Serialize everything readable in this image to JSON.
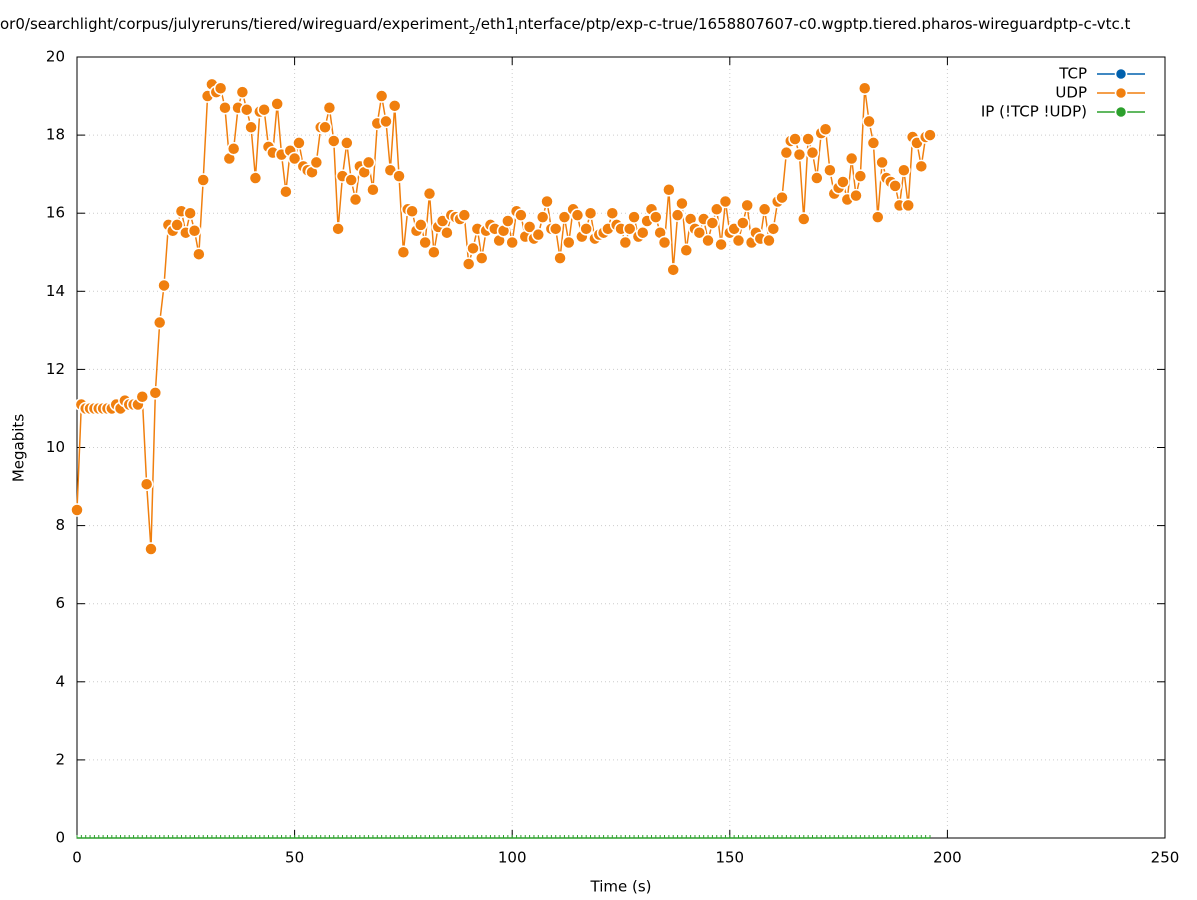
{
  "chart_data": {
    "type": "line",
    "title_segments": [
      {
        "text": "or0/searchlight/corpus/julyreruns/tiered/wireguard/experiment",
        "sub": false
      },
      {
        "text": "2",
        "sub": true
      },
      {
        "text": "/eth1",
        "sub": false
      },
      {
        "text": "i",
        "sub": true
      },
      {
        "text": "nterface/ptp/exp-c-true/1658807607-c0.wgptp.tiered.pharos-wireguardptp-c-vtc.t",
        "sub": false
      }
    ],
    "x_label": "Time (s)",
    "y_label": "Megabits",
    "x": [
      0,
      1,
      2,
      3,
      4,
      5,
      6,
      7,
      8,
      9,
      10,
      11,
      12,
      13,
      14,
      15,
      16,
      17,
      18,
      19,
      20,
      21,
      22,
      23,
      24,
      25,
      26,
      27,
      28,
      29,
      30,
      31,
      32,
      33,
      34,
      35,
      36,
      37,
      38,
      39,
      40,
      41,
      42,
      43,
      44,
      45,
      46,
      47,
      48,
      49,
      50,
      51,
      52,
      53,
      54,
      55,
      56,
      57,
      58,
      59,
      60,
      61,
      62,
      63,
      64,
      65,
      66,
      67,
      68,
      69,
      70,
      71,
      72,
      73,
      74,
      75,
      76,
      77,
      78,
      79,
      80,
      81,
      82,
      83,
      84,
      85,
      86,
      87,
      88,
      89,
      90,
      91,
      92,
      93,
      94,
      95,
      96,
      97,
      98,
      99,
      100,
      101,
      102,
      103,
      104,
      105,
      106,
      107,
      108,
      109,
      110,
      111,
      112,
      113,
      114,
      115,
      116,
      117,
      118,
      119,
      120,
      121,
      122,
      123,
      124,
      125,
      126,
      127,
      128,
      129,
      130,
      131,
      132,
      133,
      134,
      135,
      136,
      137,
      138,
      139,
      140,
      141,
      142,
      143,
      144,
      145,
      146,
      147,
      148,
      149,
      150,
      151,
      152,
      153,
      154,
      155,
      156,
      157,
      158,
      159,
      160,
      161,
      162,
      163,
      164,
      165,
      166,
      167,
      168,
      169,
      170,
      171,
      172,
      173,
      174,
      175,
      176,
      177,
      178,
      179,
      180,
      181,
      182,
      183,
      184,
      185,
      186,
      187,
      188,
      189,
      190,
      191,
      192,
      193,
      194,
      195,
      196
    ],
    "series": [
      {
        "name": "TCP",
        "color": "#0060ad",
        "x": [],
        "values": []
      },
      {
        "name": "UDP",
        "color": "#f07f0e",
        "values": [
          8.4,
          11.1,
          11.0,
          11.0,
          11.0,
          11.0,
          11.0,
          11.0,
          11.0,
          11.1,
          11.0,
          11.2,
          11.1,
          11.1,
          11.1,
          11.3,
          9.06,
          7.4,
          11.4,
          13.2,
          14.15,
          15.7,
          15.55,
          15.7,
          16.05,
          15.5,
          16.0,
          15.55,
          14.95,
          16.85,
          19.0,
          19.3,
          19.1,
          19.2,
          18.7,
          17.4,
          17.65,
          18.7,
          19.1,
          18.65,
          18.2,
          16.9,
          18.6,
          18.65,
          17.7,
          17.55,
          18.8,
          17.5,
          16.55,
          17.6,
          17.4,
          17.8,
          17.2,
          17.1,
          17.05,
          17.3,
          18.2,
          18.2,
          18.7,
          17.85,
          15.6,
          16.95,
          17.8,
          16.85,
          16.35,
          17.2,
          17.05,
          17.3,
          16.6,
          18.3,
          19.0,
          18.35,
          17.1,
          18.75,
          16.95,
          15.0,
          16.1,
          16.05,
          15.55,
          15.7,
          15.25,
          16.5,
          15.0,
          15.65,
          15.8,
          15.5,
          15.95,
          15.9,
          15.85,
          15.95,
          14.7,
          15.1,
          15.6,
          14.85,
          15.55,
          15.7,
          15.6,
          15.3,
          15.55,
          15.8,
          15.25,
          16.05,
          15.95,
          15.4,
          15.65,
          15.35,
          15.45,
          15.9,
          16.3,
          15.6,
          15.6,
          14.85,
          15.9,
          15.25,
          16.1,
          15.95,
          15.4,
          15.6,
          16.0,
          15.35,
          15.45,
          15.5,
          15.6,
          16.0,
          15.7,
          15.6,
          15.25,
          15.6,
          15.9,
          15.4,
          15.5,
          15.8,
          16.1,
          15.9,
          15.5,
          15.25,
          16.6,
          14.55,
          15.95,
          16.25,
          15.05,
          15.85,
          15.6,
          15.5,
          15.85,
          15.3,
          15.75,
          16.1,
          15.2,
          16.3,
          15.5,
          15.6,
          15.3,
          15.75,
          16.2,
          15.25,
          15.5,
          15.35,
          16.1,
          15.3,
          15.6,
          16.3,
          16.4,
          17.55,
          17.85,
          17.9,
          17.5,
          15.85,
          17.9,
          17.55,
          16.9,
          18.05,
          18.15,
          17.1,
          16.5,
          16.65,
          16.8,
          16.35,
          17.4,
          16.45,
          16.95,
          19.2,
          18.35,
          17.8,
          15.9,
          17.3,
          16.9,
          16.8,
          16.7,
          16.2,
          17.1,
          16.2,
          17.95,
          17.8,
          17.2,
          17.95,
          18.0
        ]
      },
      {
        "name": "IP (!TCP  !UDP)",
        "color": "#2ca02c",
        "values": [
          0,
          0,
          0,
          0,
          0,
          0,
          0,
          0,
          0,
          0,
          0,
          0,
          0,
          0,
          0,
          0,
          0,
          0,
          0,
          0,
          0,
          0,
          0,
          0,
          0,
          0,
          0,
          0,
          0,
          0,
          0,
          0,
          0,
          0,
          0,
          0,
          0,
          0,
          0,
          0,
          0,
          0,
          0,
          0,
          0,
          0,
          0,
          0,
          0,
          0,
          0,
          0,
          0,
          0,
          0,
          0,
          0,
          0,
          0,
          0,
          0,
          0,
          0,
          0,
          0,
          0,
          0,
          0,
          0,
          0,
          0,
          0,
          0,
          0,
          0,
          0,
          0,
          0,
          0,
          0,
          0,
          0,
          0,
          0,
          0,
          0,
          0,
          0,
          0,
          0,
          0,
          0,
          0,
          0,
          0,
          0,
          0,
          0,
          0,
          0,
          0,
          0,
          0,
          0,
          0,
          0,
          0,
          0,
          0,
          0,
          0,
          0,
          0,
          0,
          0,
          0,
          0,
          0,
          0,
          0,
          0,
          0,
          0,
          0,
          0,
          0,
          0,
          0,
          0,
          0,
          0,
          0,
          0,
          0,
          0,
          0,
          0,
          0,
          0,
          0,
          0,
          0,
          0,
          0,
          0,
          0,
          0,
          0,
          0,
          0,
          0,
          0,
          0,
          0,
          0,
          0,
          0,
          0,
          0,
          0,
          0,
          0,
          0,
          0,
          0,
          0,
          0,
          0,
          0,
          0,
          0,
          0,
          0,
          0,
          0,
          0,
          0,
          0,
          0,
          0,
          0,
          0,
          0,
          0,
          0,
          0,
          0,
          0,
          0,
          0,
          0,
          0,
          0,
          0,
          0,
          0,
          0
        ]
      }
    ],
    "xlim": [
      0,
      250
    ],
    "xticks": [
      0,
      50,
      100,
      150,
      200,
      250
    ],
    "ylim": [
      0,
      20
    ],
    "yticks": [
      0,
      2,
      4,
      6,
      8,
      10,
      12,
      14,
      16,
      18,
      20
    ],
    "grid": true,
    "legend": "top-right"
  }
}
